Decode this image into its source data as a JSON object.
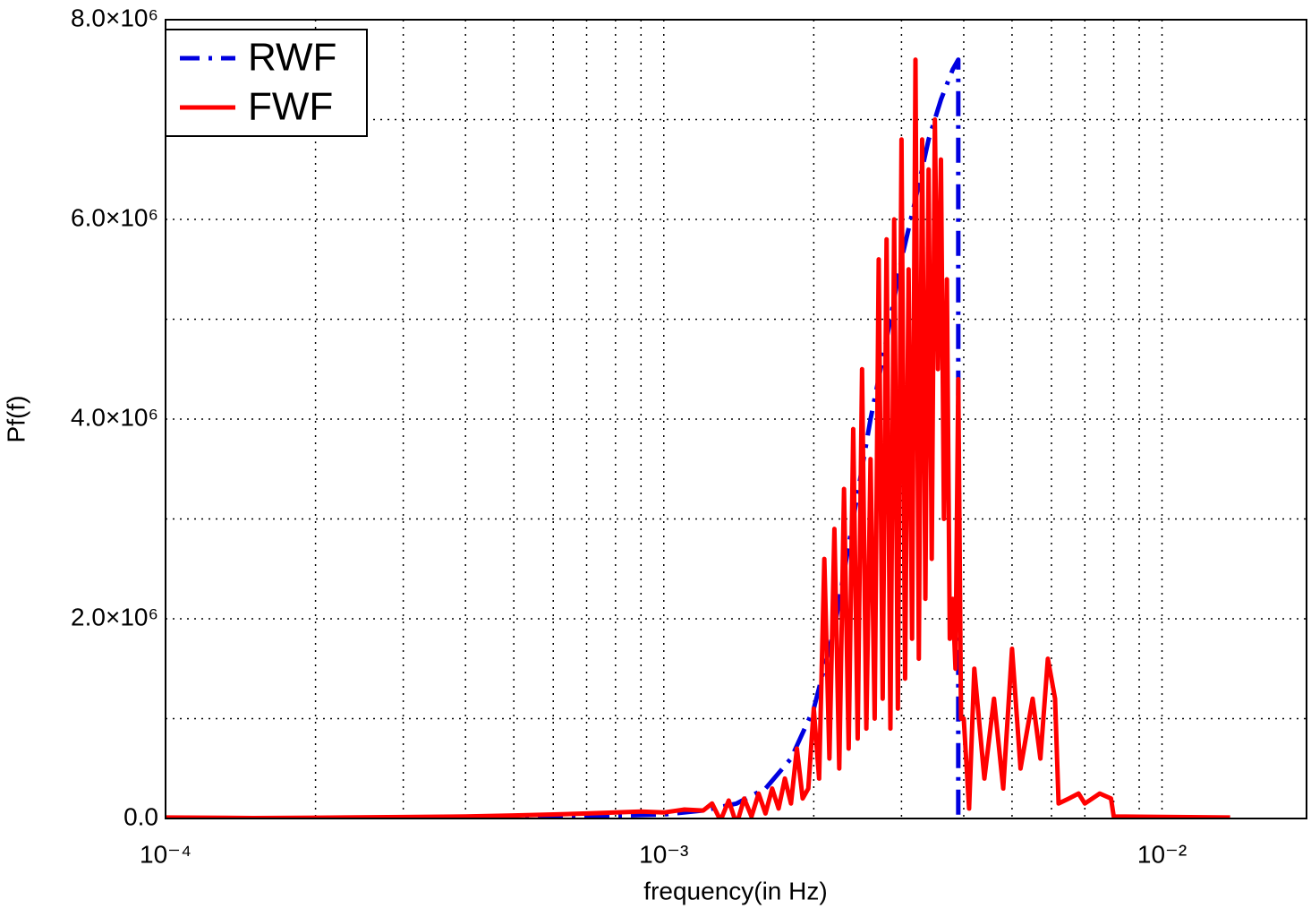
{
  "chart_data": {
    "type": "line",
    "x_axis_label": "frequency(in Hz)",
    "y_axis_label": "Pf(f)",
    "xscale": "log",
    "xlim": [
      0.0001,
      0.0195
    ],
    "ylim": [
      0,
      8000000
    ],
    "xticks": [
      {
        "value": 0.0001,
        "label": "10⁻⁴"
      },
      {
        "value": 0.001,
        "label": "10⁻³"
      },
      {
        "value": 0.01,
        "label": "10⁻²"
      }
    ],
    "xminor": [
      0.0002,
      0.0003,
      0.0004,
      0.0005,
      0.0006,
      0.0007,
      0.0008,
      0.0009,
      0.002,
      0.003,
      0.004,
      0.005,
      0.006,
      0.007,
      0.008,
      0.009
    ],
    "yticks": [
      {
        "value": 0,
        "label": "0.0"
      },
      {
        "value": 2000000,
        "label": "2.0×10⁶"
      },
      {
        "value": 4000000,
        "label": "4.0×10⁶"
      },
      {
        "value": 6000000,
        "label": "6.0×10⁶"
      },
      {
        "value": 8000000,
        "label": "8.0×10⁶"
      }
    ],
    "yminor": [
      1000000,
      3000000,
      5000000,
      7000000
    ],
    "grid": true,
    "legend": "upper left",
    "series": [
      {
        "name": "RWF",
        "color": "#0000e0",
        "style": "dashdot",
        "x": [
          0.0001,
          0.0003,
          0.0006,
          0.001,
          0.0012,
          0.0014,
          0.0016,
          0.0018,
          0.002,
          0.0022,
          0.0024,
          0.0026,
          0.0028,
          0.003,
          0.0032,
          0.0034,
          0.0036,
          0.0038,
          0.0039,
          0.0039
        ],
        "values": [
          0,
          5000,
          15000,
          40000,
          80000,
          150000,
          300000,
          600000,
          1100000,
          1900000,
          3000000,
          4000000,
          4800000,
          5600000,
          6200000,
          6800000,
          7200000,
          7500000,
          7600000,
          0
        ]
      },
      {
        "name": "FWF",
        "color": "#ff0000",
        "style": "solid",
        "x": [
          0.0001,
          0.00015,
          0.0002,
          0.0003,
          0.0004,
          0.0005,
          0.0006,
          0.0007,
          0.0008,
          0.0009,
          0.001,
          0.0011,
          0.0012,
          0.00125,
          0.0013,
          0.00135,
          0.0014,
          0.00145,
          0.0015,
          0.00155,
          0.0016,
          0.00165,
          0.0017,
          0.00175,
          0.0018,
          0.00185,
          0.0019,
          0.00195,
          0.002,
          0.00205,
          0.0021,
          0.00215,
          0.0022,
          0.00225,
          0.0023,
          0.00235,
          0.0024,
          0.00245,
          0.0025,
          0.00255,
          0.0026,
          0.00265,
          0.0027,
          0.00275,
          0.0028,
          0.00285,
          0.0029,
          0.00295,
          0.003,
          0.00305,
          0.0031,
          0.00315,
          0.0032,
          0.00325,
          0.0033,
          0.00335,
          0.0034,
          0.00345,
          0.0035,
          0.00355,
          0.0036,
          0.00365,
          0.0037,
          0.00375,
          0.0038,
          0.00385,
          0.0039,
          0.00395,
          0.004,
          0.0041,
          0.0042,
          0.0044,
          0.0046,
          0.0048,
          0.005,
          0.0052,
          0.0055,
          0.0057,
          0.0059,
          0.0061,
          0.0062,
          0.0065,
          0.0068,
          0.007,
          0.0075,
          0.0079,
          0.008,
          0.0137
        ],
        "values": [
          10000,
          5000,
          8000,
          15000,
          20000,
          30000,
          40000,
          50000,
          60000,
          70000,
          60000,
          90000,
          80000,
          150000,
          -20000,
          180000,
          -60000,
          200000,
          20000,
          250000,
          50000,
          300000,
          100000,
          400000,
          150000,
          700000,
          200000,
          300000,
          1100000,
          400000,
          2600000,
          600000,
          2900000,
          500000,
          3300000,
          700000,
          3900000,
          800000,
          4500000,
          900000,
          3600000,
          1000000,
          5600000,
          1200000,
          5800000,
          900000,
          6000000,
          1100000,
          6800000,
          1400000,
          5500000,
          1800000,
          7600000,
          1600000,
          6800000,
          2200000,
          6500000,
          2600000,
          7000000,
          4500000,
          6600000,
          3000000,
          5400000,
          1800000,
          2200000,
          1500000,
          4400000,
          1000000,
          1000000,
          100000,
          1500000,
          400000,
          1200000,
          300000,
          1700000,
          500000,
          1200000,
          600000,
          1600000,
          1200000,
          150000,
          200000,
          250000,
          150000,
          250000,
          200000,
          20000,
          10000
        ]
      }
    ]
  }
}
